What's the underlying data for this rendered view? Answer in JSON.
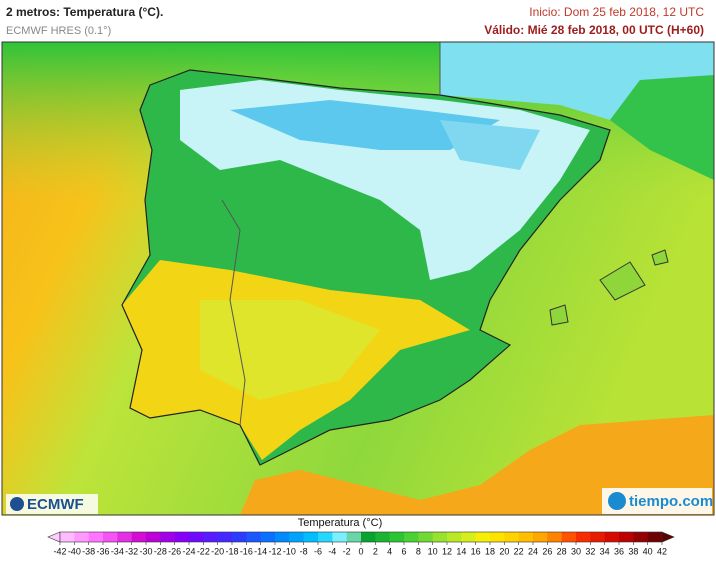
{
  "header": {
    "title": "2 metros: Temperatura (°C).",
    "model": "ECMWF HRES (0.1°)",
    "init": "Inicio: Dom 25 feb 2018, 12 UTC",
    "valid": "Válido: Mié 28 feb 2018, 00 UTC (H+60)"
  },
  "logos": {
    "left": "ECMWF",
    "right": "tiempo.com"
  },
  "legend": {
    "title": "Temperatura (°C)",
    "ticks": [
      -42,
      -40,
      -38,
      -36,
      -34,
      -32,
      -30,
      -28,
      -26,
      -24,
      -22,
      -20,
      -18,
      -16,
      -14,
      -12,
      -10,
      -8,
      -6,
      -4,
      -2,
      0,
      2,
      4,
      6,
      8,
      10,
      12,
      14,
      16,
      18,
      20,
      22,
      24,
      26,
      28,
      30,
      32,
      34,
      36,
      38,
      40,
      42
    ]
  }
}
